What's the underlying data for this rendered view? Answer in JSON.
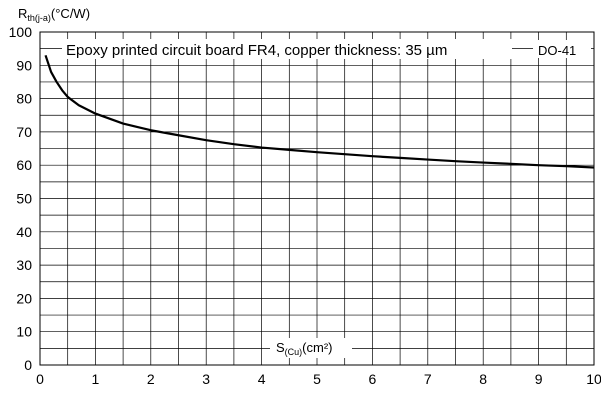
{
  "chart_data": {
    "type": "line",
    "title": "Epoxy printed circuit board FR4, copper thickness:  35 µm",
    "tag": "DO-41",
    "ylabel": {
      "main": "R",
      "sub": "th(j-a)",
      "unit": "(°C/W)"
    },
    "xlabel": {
      "main": "S",
      "sub": "(Cu)",
      "unit": "(cm²)"
    },
    "xlim": [
      0,
      10
    ],
    "ylim": [
      0,
      100
    ],
    "x_ticks": [
      0,
      1,
      2,
      3,
      4,
      5,
      6,
      7,
      8,
      9,
      10
    ],
    "y_ticks": [
      0,
      10,
      20,
      30,
      40,
      50,
      60,
      70,
      80,
      90,
      100
    ],
    "x_minor_step": 0.5,
    "y_minor_step": 5,
    "grid": true,
    "series": [
      {
        "x": [
          0.1,
          0.2,
          0.3,
          0.4,
          0.5,
          0.7,
          1.0,
          1.5,
          2.0,
          2.5,
          3.0,
          3.5,
          4.0,
          4.5,
          5.0,
          5.5,
          6.0,
          6.5,
          7.0,
          7.5,
          8.0,
          8.5,
          9.0,
          9.5,
          10.0
        ],
        "y": [
          93,
          88,
          85,
          82.5,
          80.5,
          78,
          75.5,
          72.5,
          70.5,
          69,
          67.5,
          66.3,
          65.3,
          64.6,
          63.9,
          63.3,
          62.7,
          62.2,
          61.7,
          61.2,
          60.8,
          60.4,
          60.0,
          59.7,
          59.3
        ]
      }
    ]
  }
}
